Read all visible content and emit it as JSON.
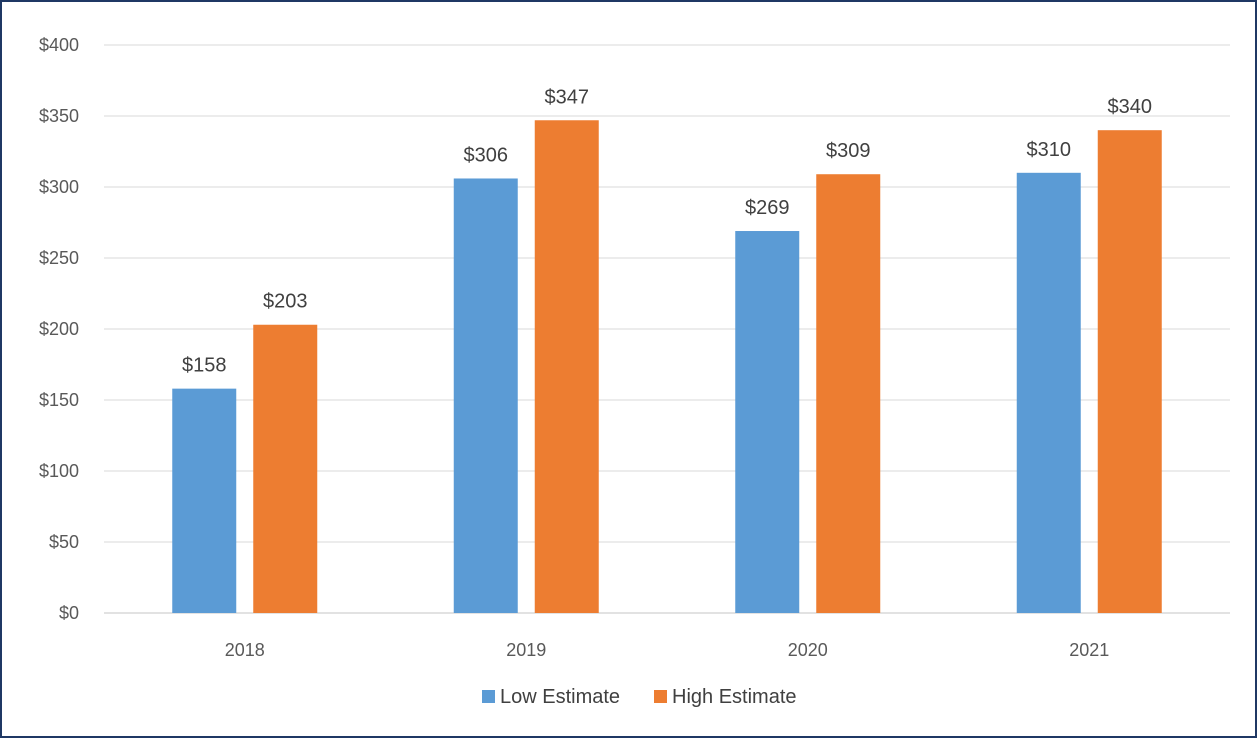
{
  "chart_data": {
    "type": "bar",
    "categories": [
      "2018",
      "2019",
      "2020",
      "2021"
    ],
    "series": [
      {
        "name": "Low Estimate",
        "values": [
          158,
          306,
          269,
          310
        ],
        "color": "#5b9bd5"
      },
      {
        "name": "High Estimate",
        "values": [
          203,
          347,
          309,
          340
        ],
        "color": "#ed7d31"
      }
    ],
    "ylim": [
      0,
      400
    ],
    "yticks": [
      0,
      50,
      100,
      150,
      200,
      250,
      300,
      350,
      400
    ],
    "value_prefix": "$",
    "title": "",
    "xlabel": "",
    "ylabel": "",
    "grid": true,
    "legend_position": "bottom",
    "gridline_color": "#d9d9d9"
  }
}
